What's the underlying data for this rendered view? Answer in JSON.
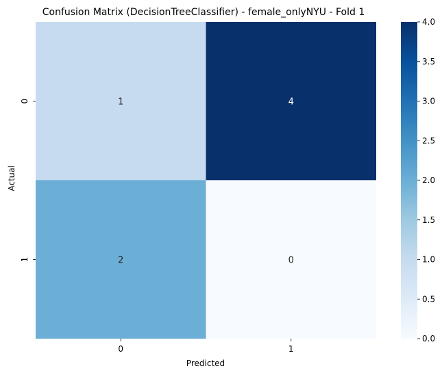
{
  "chart_data": {
    "type": "heatmap",
    "title": "Confusion Matrix (DecisionTreeClassifier) - female_onlyNYU - Fold 1",
    "xlabel": "Predicted",
    "ylabel": "Actual",
    "x_categories": [
      "0",
      "1"
    ],
    "y_categories": [
      "0",
      "1"
    ],
    "values": [
      [
        1,
        4
      ],
      [
        2,
        0
      ]
    ],
    "colormap": "Blues",
    "colorbar": {
      "min": 0.0,
      "max": 4.0,
      "ticks": [
        "0.0",
        "0.5",
        "1.0",
        "1.5",
        "2.0",
        "2.5",
        "3.0",
        "3.5",
        "4.0"
      ]
    },
    "grid": false
  }
}
